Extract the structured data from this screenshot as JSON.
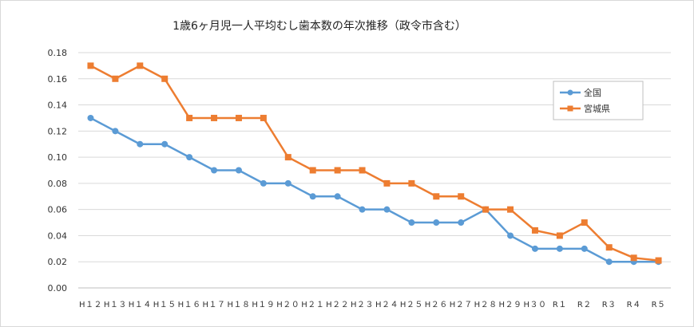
{
  "chart_data": {
    "type": "line",
    "title": "1歳6ヶ月児一人平均むし歯本数の年次推移（政令市含む）",
    "xlabel": "",
    "ylabel": "",
    "ylim": [
      0,
      0.18
    ],
    "yticks": [
      "0.00",
      "0.02",
      "0.04",
      "0.06",
      "0.08",
      "0.10",
      "0.12",
      "0.14",
      "0.16",
      "0.18"
    ],
    "grid": true,
    "legend_position": "right",
    "categories": [
      "H12",
      "H13",
      "H14",
      "H15",
      "H16",
      "H17",
      "H18",
      "H19",
      "H20",
      "H21",
      "H22",
      "H23",
      "H24",
      "H25",
      "H26",
      "H27",
      "H28",
      "H29",
      "H30",
      "R1",
      "R2",
      "R3",
      "R4",
      "R5"
    ],
    "category_labels": [
      "H１２",
      "H１３",
      "H１４",
      "H１５",
      "H１６",
      "H１７",
      "H１８",
      "H１９",
      "H２０",
      "H２１",
      "H２２",
      "H２３",
      "H２４",
      "H２５",
      "H２６",
      "H２７",
      "H２８",
      "H２９",
      "H３０",
      "R１",
      "R２",
      "R３",
      "R４",
      "R５"
    ],
    "series": [
      {
        "name": "全国",
        "color": "#5b9bd5",
        "marker": "circle",
        "values": [
          0.13,
          0.12,
          0.11,
          0.11,
          0.1,
          0.09,
          0.09,
          0.08,
          0.08,
          0.07,
          0.07,
          0.06,
          0.06,
          0.05,
          0.05,
          0.05,
          0.06,
          0.04,
          0.03,
          0.03,
          0.03,
          0.02,
          0.02,
          0.02
        ]
      },
      {
        "name": "宮城県",
        "color": "#ed7d31",
        "marker": "square",
        "values": [
          0.17,
          0.16,
          0.17,
          0.16,
          0.13,
          0.13,
          0.13,
          0.13,
          0.1,
          0.09,
          0.09,
          0.09,
          0.08,
          0.08,
          0.07,
          0.07,
          0.06,
          0.06,
          0.044,
          0.04,
          0.05,
          0.031,
          0.023,
          0.021
        ]
      }
    ]
  }
}
